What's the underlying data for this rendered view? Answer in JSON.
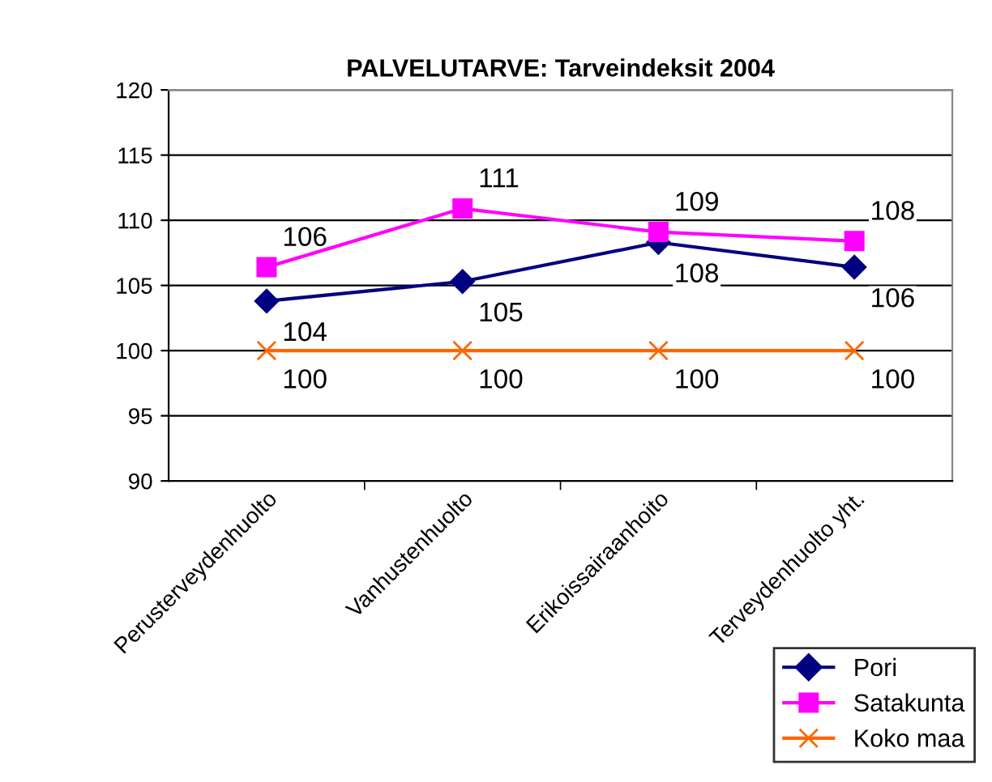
{
  "chart_data": {
    "type": "line",
    "title": "PALVELUTARVE: Tarveindeksit 2004",
    "categories": [
      "Perusterveydenhuolto",
      "Vanhustenhuolto",
      "Erikoissairaanhoito",
      "Terveydenhuolto yht."
    ],
    "series": [
      {
        "name": "Pori",
        "color": "#000080",
        "marker": "diamond",
        "values": [
          103.8,
          105.3,
          108.3,
          106.4
        ],
        "value_labels": [
          "104",
          "105",
          "108",
          "106"
        ]
      },
      {
        "name": "Satakunta",
        "color": "#ff00ff",
        "marker": "square",
        "values": [
          106.4,
          110.9,
          109.1,
          108.4
        ],
        "value_labels": [
          "106",
          "111",
          "109",
          "108"
        ]
      },
      {
        "name": "Koko maa",
        "color": "#ff6600",
        "marker": "cross",
        "values": [
          100,
          100,
          100,
          100
        ],
        "value_labels": [
          "100",
          "100",
          "100",
          "100"
        ]
      }
    ],
    "ylim": [
      90,
      120
    ],
    "yticks": [
      90,
      95,
      100,
      105,
      110,
      115,
      120
    ],
    "grid": "y",
    "legend": "bottom right"
  }
}
